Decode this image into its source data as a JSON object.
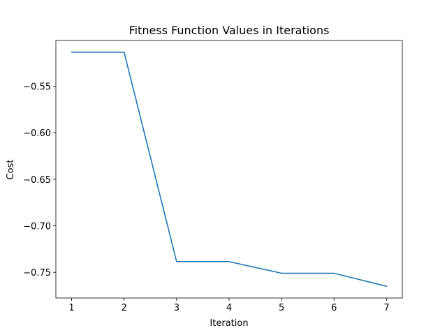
{
  "chart_data": {
    "type": "line",
    "title": "Fitness Function Values in Iterations",
    "xlabel": "Iteration",
    "ylabel": "Cost",
    "x": [
      1,
      2,
      3,
      4,
      5,
      6,
      7
    ],
    "series": [
      {
        "values": [
          -0.5135,
          -0.5135,
          -0.7385,
          -0.7385,
          -0.751,
          -0.751,
          -0.765
        ],
        "color": "#1f77b4"
      }
    ],
    "xticks": [
      "1",
      "2",
      "3",
      "4",
      "5",
      "6",
      "7"
    ],
    "yticks": [
      -0.55,
      -0.6,
      -0.65,
      -0.7,
      -0.75
    ],
    "ytick_labels": [
      "−0.55",
      "−0.60",
      "−0.65",
      "−0.70",
      "−0.75"
    ],
    "xlim": [
      0.7,
      7.3
    ],
    "ylim": [
      -0.7776,
      -0.5009
    ],
    "grid": false,
    "legend": false
  }
}
